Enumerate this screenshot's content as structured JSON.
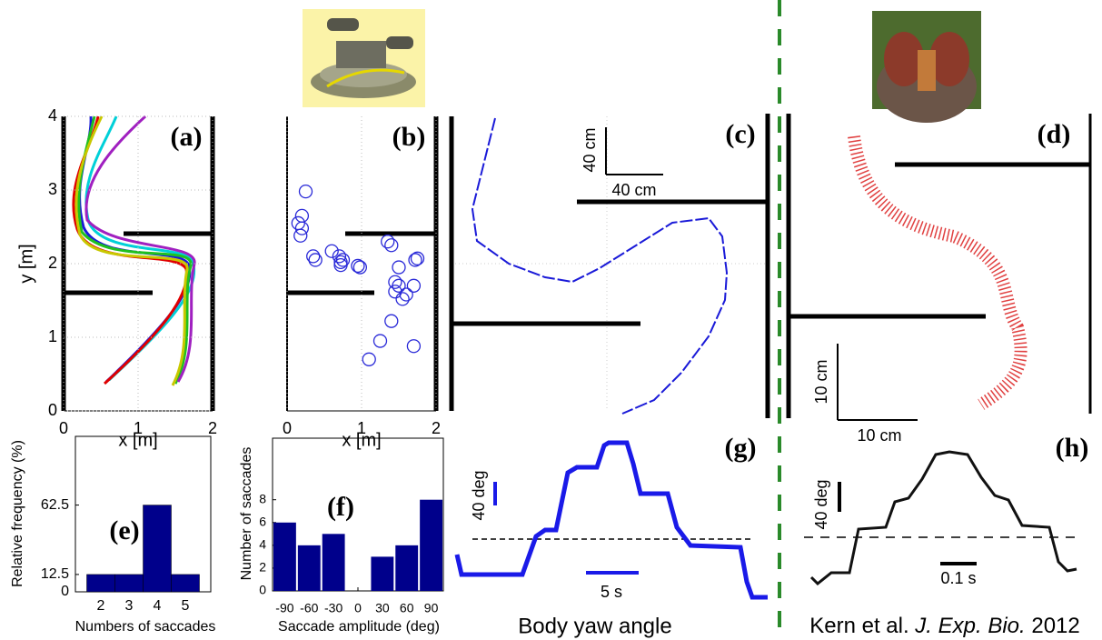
{
  "chart_data": [
    {
      "type": "line",
      "label": "(a)",
      "xlabel": "x [m]",
      "ylabel": "y [m]",
      "xlim": [
        0,
        2
      ],
      "ylim": [
        0,
        4
      ],
      "xticks": [
        0,
        1,
        2
      ],
      "yticks": [
        0,
        1,
        2,
        3,
        4
      ],
      "grid": true
    },
    {
      "type": "scatter",
      "label": "(b)",
      "xlabel": "x [m]",
      "xlim": [
        0,
        2
      ],
      "ylim": [
        0,
        4
      ],
      "xticks": [
        0,
        1,
        2
      ],
      "grid": true,
      "color": "#2a2ad8",
      "x": [
        0.25,
        0.2,
        0.15,
        0.2,
        0.18,
        0.35,
        0.38,
        0.6,
        0.7,
        0.72,
        0.75,
        0.72,
        0.95,
        0.98,
        1.35,
        1.4,
        1.75,
        1.72,
        1.5,
        1.45,
        1.5,
        1.45,
        1.6,
        1.7,
        1.55,
        1.4,
        1.25,
        1.7,
        1.1
      ],
      "values": [
        2.98,
        2.65,
        2.55,
        2.48,
        2.38,
        2.1,
        2.05,
        2.17,
        2.1,
        2.02,
        2.05,
        1.98,
        1.97,
        1.95,
        2.3,
        2.25,
        2.07,
        2.05,
        1.95,
        1.75,
        1.7,
        1.62,
        1.58,
        1.7,
        1.52,
        1.22,
        0.95,
        0.88,
        0.7
      ]
    },
    {
      "type": "bar",
      "label": "(e)",
      "xlabel": "Numbers of saccades",
      "ylabel": "Relative frequency (%)",
      "categories": [
        "2",
        "3",
        "4",
        "5"
      ],
      "values": [
        12.5,
        12.5,
        62.5,
        12.5
      ],
      "ylim": [
        0,
        112
      ],
      "yticks": [
        0,
        12.5,
        62.5
      ],
      "color": "#00008b"
    },
    {
      "type": "histogram",
      "label": "(f)",
      "xlabel": "Saccade amplitude (deg)",
      "ylabel": "Number of saccades",
      "bins": [
        -105,
        -75,
        -45,
        -15,
        15,
        45,
        75,
        105
      ],
      "values": [
        6,
        4,
        5,
        0,
        3,
        4,
        8
      ],
      "xlim": [
        -105,
        105
      ],
      "xticks": [
        -90,
        -60,
        -30,
        0,
        30,
        60,
        90
      ],
      "ylim": [
        0,
        13.4
      ],
      "yticks": [
        0,
        2,
        4,
        6,
        8
      ],
      "color": "#00008b"
    }
  ],
  "panel_labels": {
    "c": "(c)",
    "d": "(d)",
    "g": "(g)",
    "h": "(h)"
  },
  "scale_labels": {
    "c_vertical": "40 cm",
    "c_horizontal": "40 cm",
    "d_vertical": "10 cm",
    "d_horizontal": "10 cm",
    "g_vertical": "40 deg",
    "g_horizontal": "5 s",
    "h_vertical": "40 deg",
    "h_horizontal": "0.1 s"
  },
  "captions": {
    "g": "Body yaw angle",
    "h_authors": "Kern et al. ",
    "h_journal": "J. Exp. Bio.",
    "h_year": " 2012"
  }
}
